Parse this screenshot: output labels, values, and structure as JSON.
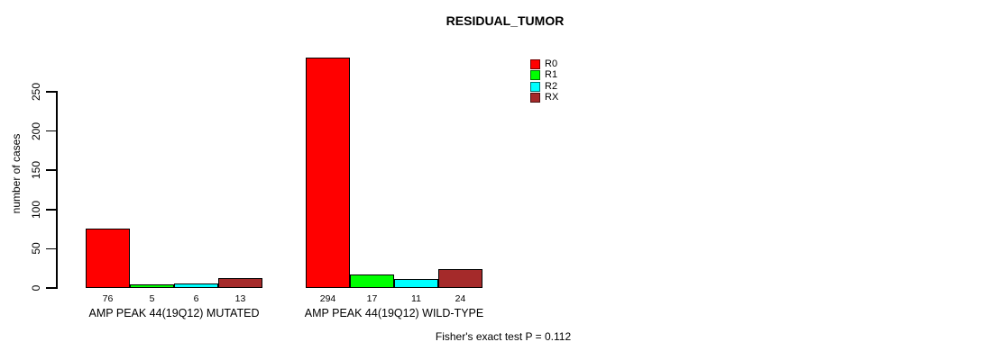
{
  "chart_data": {
    "type": "bar",
    "title": "RESIDUAL_TUMOR",
    "ylabel": "number of cases",
    "xlabel": "",
    "ylim": [
      0,
      250
    ],
    "yticks": [
      0,
      50,
      100,
      150,
      200,
      250
    ],
    "grid": false,
    "legend_position": "top-right",
    "categories": [
      "AMP PEAK 44(19Q12) MUTATED",
      "AMP PEAK 44(19Q12) WILD-TYPE"
    ],
    "series": [
      {
        "name": "R0",
        "color": "#FF0000",
        "values": [
          76,
          294
        ]
      },
      {
        "name": "R1",
        "color": "#00FF00",
        "values": [
          5,
          17
        ]
      },
      {
        "name": "R2",
        "color": "#00FFFF",
        "values": [
          6,
          11
        ]
      },
      {
        "name": "RX",
        "color": "#A52A2A",
        "values": [
          13,
          24
        ]
      }
    ],
    "bar_value_labels": [
      [
        "76",
        "5",
        "6",
        "13"
      ],
      [
        "294",
        "17",
        "11",
        "24"
      ]
    ],
    "annotation": "Fisher's exact test P = 0.112"
  }
}
